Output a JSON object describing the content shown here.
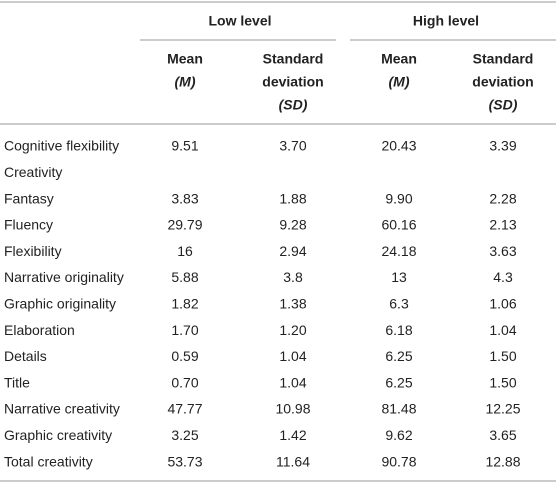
{
  "header": {
    "groups": [
      "Low level",
      "High level"
    ],
    "columns": [
      [
        "Mean",
        "(M)"
      ],
      [
        "Standard",
        "deviation",
        "(SD)"
      ],
      [
        "Mean",
        "(M)"
      ],
      [
        "Standard",
        "deviation",
        "(SD)"
      ]
    ]
  },
  "table": {
    "rows": [
      [
        "Cognitive flexibility",
        "9.51",
        "3.70",
        "20.43",
        "3.39"
      ],
      [
        "Creativity"
      ],
      [
        "Fantasy",
        "3.83",
        "1.88",
        "9.90",
        "2.28"
      ],
      [
        "Fluency",
        "29.79",
        "9.28",
        "60.16",
        "2.13"
      ],
      [
        "Flexibility",
        "16",
        "2.94",
        "24.18",
        "3.63"
      ],
      [
        "Narrative originality",
        "5.88",
        "3.8",
        "13",
        "4.3"
      ],
      [
        "Graphic originality",
        "1.82",
        "1.38",
        "6.3",
        "1.06"
      ],
      [
        "Elaboration",
        "1.70",
        "1.20",
        "6.18",
        "1.04"
      ],
      [
        "Details",
        "0.59",
        "1.04",
        "6.25",
        "1.50"
      ],
      [
        "Title",
        "0.70",
        "1.04",
        "6.25",
        "1.50"
      ],
      [
        "Narrative creativity",
        "47.77",
        "10.98",
        "81.48",
        "12.25"
      ],
      [
        "Graphic creativity",
        "3.25",
        "1.42",
        "9.62",
        "3.65"
      ],
      [
        "Total creativity",
        "53.73",
        "11.64",
        "90.78",
        "12.88"
      ]
    ]
  }
}
